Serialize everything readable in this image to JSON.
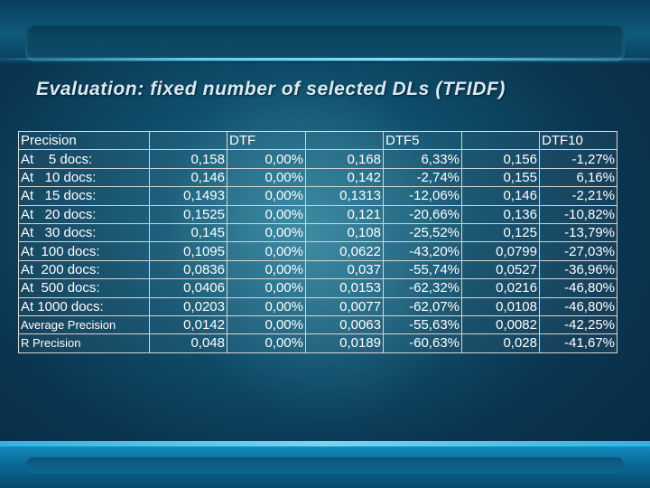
{
  "slide": {
    "title": "Evaluation: fixed number of selected DLs (TFIDF)"
  },
  "table": {
    "headers": [
      "Precision",
      "DTF",
      "DTF5",
      "DTF10"
    ],
    "rows": [
      {
        "label": "At    5 docs:",
        "dtf": "0,158",
        "dtf_pct": "0,00%",
        "dtf5": "0,168",
        "dtf5_pct": "6,33%",
        "dtf10": "0,156",
        "dtf10_pct": "-1,27%"
      },
      {
        "label": "At   10 docs:",
        "dtf": "0,146",
        "dtf_pct": "0,00%",
        "dtf5": "0,142",
        "dtf5_pct": "-2,74%",
        "dtf10": "0,155",
        "dtf10_pct": "6,16%"
      },
      {
        "label": "At   15 docs:",
        "dtf": "0,1493",
        "dtf_pct": "0,00%",
        "dtf5": "0,1313",
        "dtf5_pct": "-12,06%",
        "dtf10": "0,146",
        "dtf10_pct": "-2,21%"
      },
      {
        "label": "At   20 docs:",
        "dtf": "0,1525",
        "dtf_pct": "0,00%",
        "dtf5": "0,121",
        "dtf5_pct": "-20,66%",
        "dtf10": "0,136",
        "dtf10_pct": "-10,82%"
      },
      {
        "label": "At   30 docs:",
        "dtf": "0,145",
        "dtf_pct": "0,00%",
        "dtf5": "0,108",
        "dtf5_pct": "-25,52%",
        "dtf10": "0,125",
        "dtf10_pct": "-13,79%"
      },
      {
        "label": "At  100 docs:",
        "dtf": "0,1095",
        "dtf_pct": "0,00%",
        "dtf5": "0,0622",
        "dtf5_pct": "-43,20%",
        "dtf10": "0,0799",
        "dtf10_pct": "-27,03%"
      },
      {
        "label": "At  200 docs:",
        "dtf": "0,0836",
        "dtf_pct": "0,00%",
        "dtf5": "0,037",
        "dtf5_pct": "-55,74%",
        "dtf10": "0,0527",
        "dtf10_pct": "-36,96%"
      },
      {
        "label": "At  500 docs:",
        "dtf": "0,0406",
        "dtf_pct": "0,00%",
        "dtf5": "0,0153",
        "dtf5_pct": "-62,32%",
        "dtf10": "0,0216",
        "dtf10_pct": "-46,80%"
      },
      {
        "label": "At 1000 docs:",
        "dtf": "0,0203",
        "dtf_pct": "0,00%",
        "dtf5": "0,0077",
        "dtf5_pct": "-62,07%",
        "dtf10": "0,0108",
        "dtf10_pct": "-46,80%"
      },
      {
        "label": "Average Precision",
        "dtf": "0,0142",
        "dtf_pct": "0,00%",
        "dtf5": "0,0063",
        "dtf5_pct": "-55,63%",
        "dtf10": "0,0082",
        "dtf10_pct": "-42,25%"
      },
      {
        "label": "R Precision",
        "dtf": "0,048",
        "dtf_pct": "0,00%",
        "dtf5": "0,0189",
        "dtf5_pct": "-60,63%",
        "dtf10": "0,028",
        "dtf10_pct": "-41,67%"
      }
    ]
  }
}
